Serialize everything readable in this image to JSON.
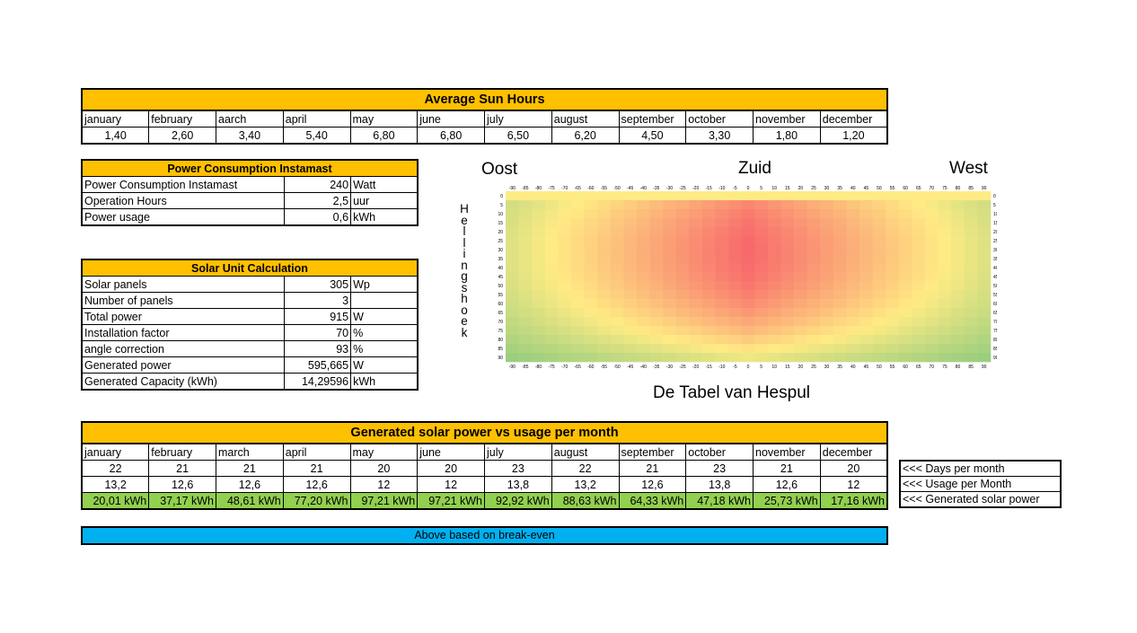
{
  "sun_hours": {
    "title": "Average Sun Hours",
    "months": [
      "january",
      "february",
      "aarch",
      "april",
      "may",
      "june",
      "july",
      "august",
      "september",
      "october",
      "november",
      "december"
    ],
    "values": [
      "1,40",
      "2,60",
      "3,40",
      "5,40",
      "6,80",
      "6,80",
      "6,50",
      "6,20",
      "4,50",
      "3,30",
      "1,80",
      "1,20"
    ]
  },
  "power": {
    "title": "Power Consumption Instamast",
    "rows": [
      {
        "label": "Power Consumption Instamast",
        "value": "240",
        "unit": "Watt"
      },
      {
        "label": "Operation Hours",
        "value": "2,5",
        "unit": "uur"
      },
      {
        "label": "Power usage",
        "value": "0,6",
        "unit": "kWh"
      }
    ]
  },
  "solar": {
    "title": "Solar Unit Calculation",
    "rows": [
      {
        "label": "Solar panels",
        "value": "305",
        "unit": "Wp"
      },
      {
        "label": "Number of panels",
        "value": "3",
        "unit": ""
      },
      {
        "label": "Total power",
        "value": "915",
        "unit": "W"
      },
      {
        "label": "Installation factor",
        "value": "70",
        "unit": "%"
      },
      {
        "label": "angle correction",
        "value": "93",
        "unit": "%"
      },
      {
        "label": "Generated power",
        "value": "595,665",
        "unit": "W"
      },
      {
        "label": "Generated Capacity (kWh)",
        "value": "14,29596",
        "unit": "kWh"
      }
    ]
  },
  "hespul": {
    "oost": "Oost",
    "zuid": "Zuid",
    "west": "West",
    "vertical_label": "Hellingshoek",
    "caption": "De Tabel van Hespul",
    "x_ticks": [
      "-90",
      "-85",
      "-80",
      "-75",
      "-70",
      "-65",
      "-60",
      "-55",
      "-50",
      "-45",
      "-40",
      "-35",
      "-30",
      "-25",
      "-20",
      "-15",
      "-10",
      "-5",
      "0",
      "5",
      "10",
      "15",
      "20",
      "25",
      "30",
      "35",
      "40",
      "45",
      "50",
      "55",
      "60",
      "65",
      "70",
      "75",
      "80",
      "85",
      "90"
    ],
    "y_ticks": [
      "0",
      "5",
      "10",
      "15",
      "20",
      "25",
      "30",
      "35",
      "40",
      "45",
      "50",
      "55",
      "60",
      "65",
      "70",
      "75",
      "80",
      "85",
      "90"
    ],
    "colors": {
      "low": "#63be7b",
      "mid": "#ffeb84",
      "high": "#f8696b"
    }
  },
  "generated": {
    "title": "Generated solar power vs usage per month",
    "months": [
      "january",
      "february",
      "march",
      "april",
      "may",
      "june",
      "july",
      "august",
      "september",
      "october",
      "november",
      "december"
    ],
    "days": [
      "22",
      "21",
      "21",
      "21",
      "20",
      "20",
      "23",
      "22",
      "21",
      "23",
      "21",
      "20"
    ],
    "usage": [
      "13,2",
      "12,6",
      "12,6",
      "12,6",
      "12",
      "12",
      "13,8",
      "13,2",
      "12,6",
      "13,8",
      "12,6",
      "12"
    ],
    "kwh": [
      "20,01 kWh",
      "37,17 kWh",
      "48,61 kWh",
      "77,20 kWh",
      "97,21 kWh",
      "97,21 kWh",
      "92,92 kWh",
      "88,63 kWh",
      "64,33 kWh",
      "47,18 kWh",
      "25,73 kWh",
      "17,16 kWh"
    ]
  },
  "legend": [
    "<<< Days per month",
    "<<< Usage per Month",
    "<<< Generated solar power"
  ],
  "note": "Above based on break-even",
  "colors": {
    "header": "#ffc000",
    "green": "#92d050",
    "blue": "#00b0f0"
  }
}
